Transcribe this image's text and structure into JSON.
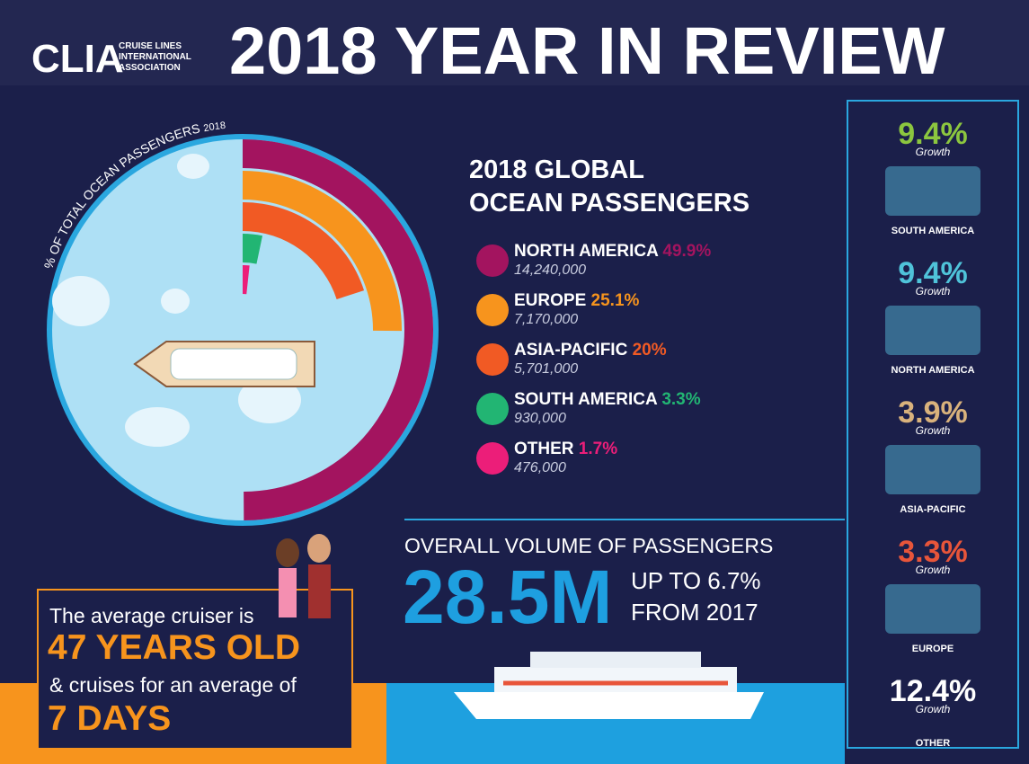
{
  "header": {
    "logo": "CLIA",
    "logo_lines": [
      "CRUISE LINES",
      "INTERNATIONAL",
      "ASSOCIATION"
    ],
    "title": "2018 YEAR IN REVIEW"
  },
  "chart_data": {
    "type": "radial-bar",
    "title_lines": [
      "2018 GLOBAL",
      "OCEAN PASSENGERS"
    ],
    "axis_label": "% OF TOTAL OCEAN PASSENGERS",
    "axis_year": "2018",
    "categories": [
      "NORTH AMERICA",
      "EUROPE",
      "ASIA-PACIFIC",
      "SOUTH AMERICA",
      "OTHER"
    ],
    "values": [
      49.9,
      25.1,
      20,
      3.3,
      1.7
    ],
    "value_labels": [
      "49.9%",
      "25.1%",
      "20%",
      "3.3%",
      "1.7%"
    ],
    "passengers": [
      "14,240,000",
      "7,170,000",
      "5,701,000",
      "930,000",
      "476,000"
    ],
    "colors": [
      "#a3145f",
      "#f7941d",
      "#f15a24",
      "#22b573",
      "#ec1e79"
    ],
    "vlim": [
      0,
      100
    ]
  },
  "volume": {
    "heading": "OVERALL VOLUME OF PASSENGERS",
    "value": {
      "value": 28500000,
      "label": "28.5M"
    },
    "change_lines": [
      "UP TO 6.7%",
      "FROM 2017"
    ]
  },
  "cruiser": {
    "line1": "The average cruiser is",
    "age": "47 YEARS OLD",
    "line2": "& cruises for an average of",
    "days": "7 DAYS"
  },
  "growth": {
    "word": "Growth",
    "items": [
      {
        "value": {
          "value": 9.4,
          "label": "9.4%"
        },
        "region": "SOUTH AMERICA",
        "color": "#8cc63f"
      },
      {
        "value": {
          "value": 9.4,
          "label": "9.4%"
        },
        "region": "NORTH AMERICA",
        "color": "#4fc3d9"
      },
      {
        "value": {
          "value": 3.9,
          "label": "3.9%"
        },
        "region": "ASIA-PACIFIC",
        "color": "#d9b27c"
      },
      {
        "value": {
          "value": 3.3,
          "label": "3.3%"
        },
        "region": "EUROPE",
        "color": "#e8553a"
      },
      {
        "value": {
          "value": 12.4,
          "label": "12.4%"
        },
        "region": "OTHER",
        "color": "#ffffff"
      }
    ]
  }
}
